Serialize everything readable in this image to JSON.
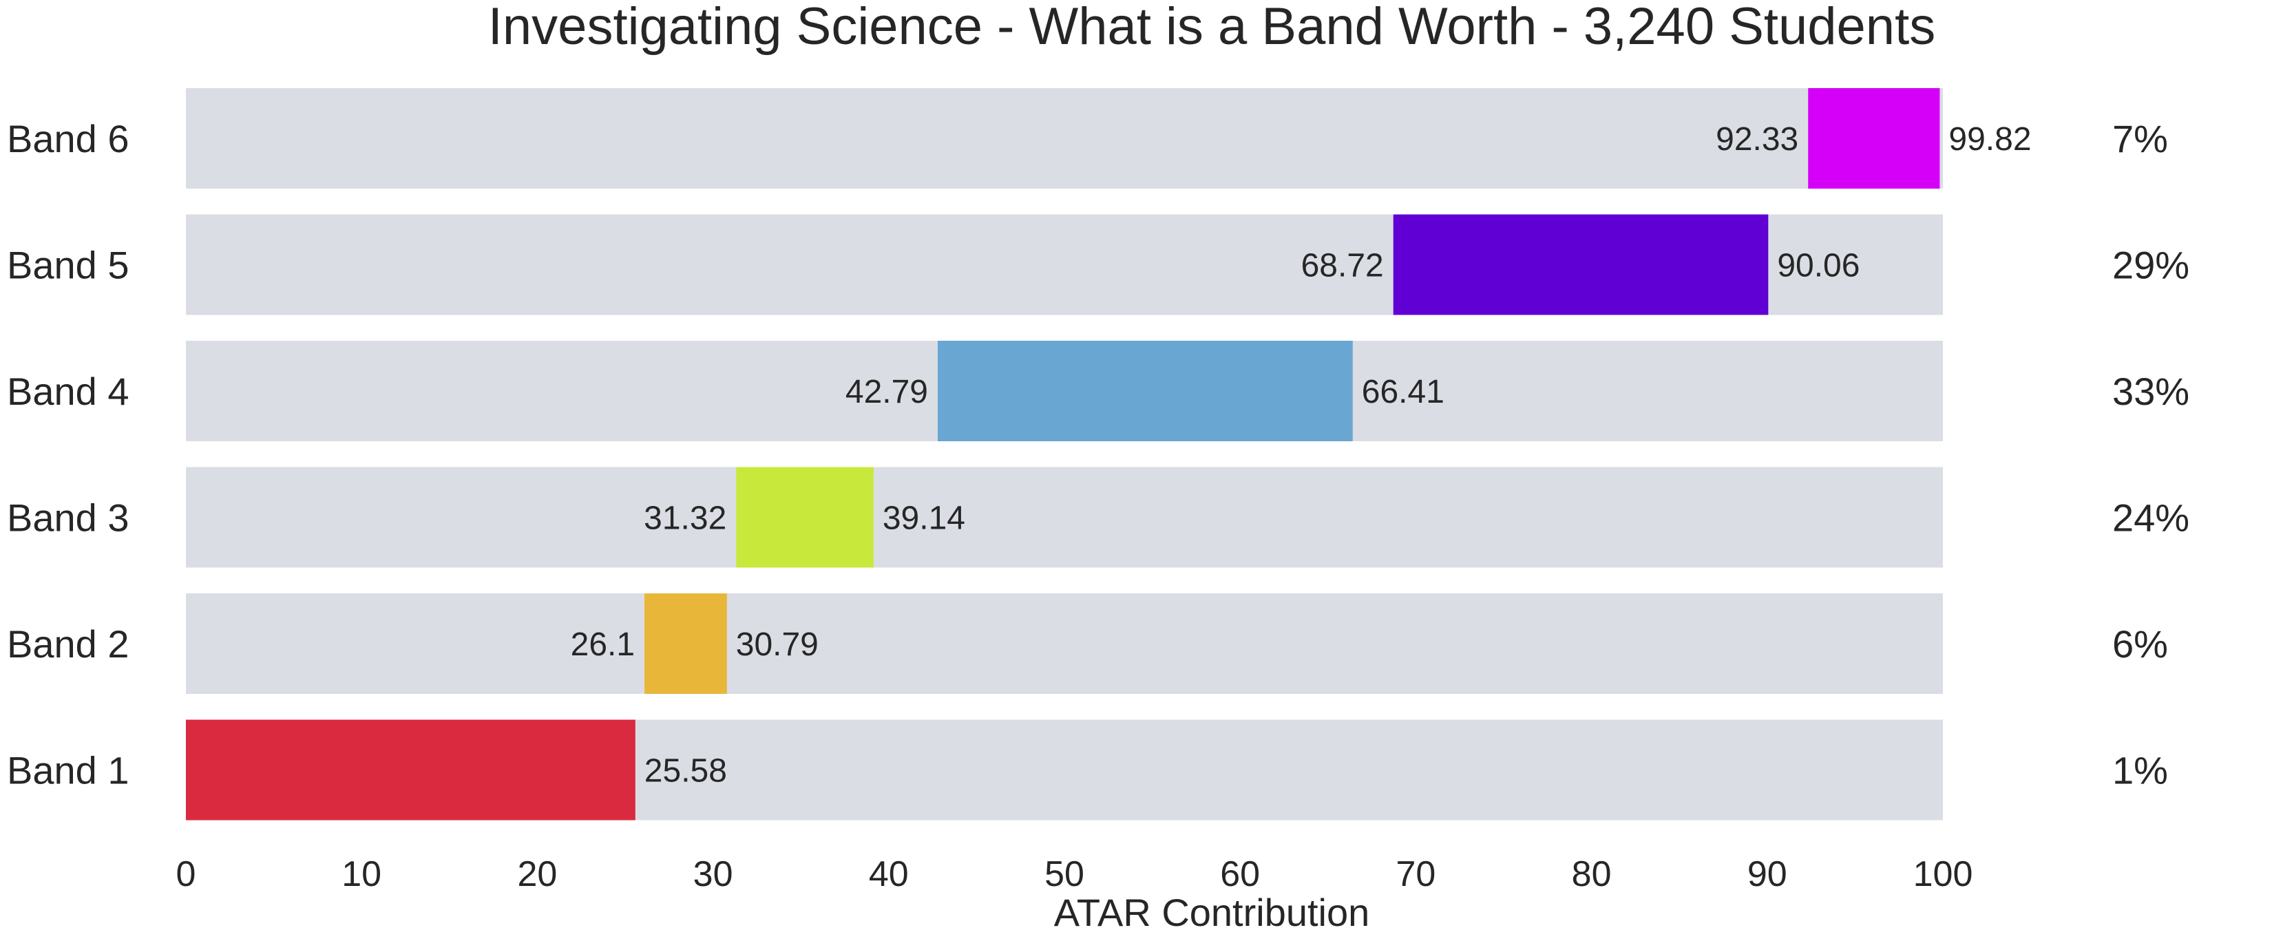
{
  "chart_data": {
    "type": "bar",
    "orientation": "horizontal-floating",
    "title": "Investigating Science - What is a Band Worth - 3,240 Students",
    "xlabel": "ATAR Contribution",
    "ylabel": "",
    "xlim": [
      0,
      100
    ],
    "x_ticks": [
      0,
      10,
      20,
      30,
      40,
      50,
      60,
      70,
      80,
      90,
      100
    ],
    "grid": false,
    "legend": "none",
    "background_track_color": "#dadde4",
    "bands": [
      {
        "label": "Band 6",
        "start": 92.33,
        "end": 99.82,
        "start_label": "92.33",
        "end_label": "99.82",
        "percent": "7%",
        "color": "#d400f7"
      },
      {
        "label": "Band 5",
        "start": 68.72,
        "end": 90.06,
        "start_label": "68.72",
        "end_label": "90.06",
        "percent": "29%",
        "color": "#6000d4"
      },
      {
        "label": "Band 4",
        "start": 42.79,
        "end": 66.41,
        "start_label": "42.79",
        "end_label": "66.41",
        "percent": "33%",
        "color": "#69a6d2"
      },
      {
        "label": "Band 3",
        "start": 31.32,
        "end": 39.14,
        "start_label": "31.32",
        "end_label": "39.14",
        "percent": "24%",
        "color": "#c8e93c"
      },
      {
        "label": "Band 2",
        "start": 26.1,
        "end": 30.79,
        "start_label": "26.1",
        "end_label": "30.79",
        "percent": "6%",
        "color": "#e8b73a"
      },
      {
        "label": "Band 1",
        "start": 0,
        "end": 25.58,
        "start_label": "",
        "end_label": "25.58",
        "percent": "1%",
        "color": "#da2a40"
      }
    ]
  }
}
